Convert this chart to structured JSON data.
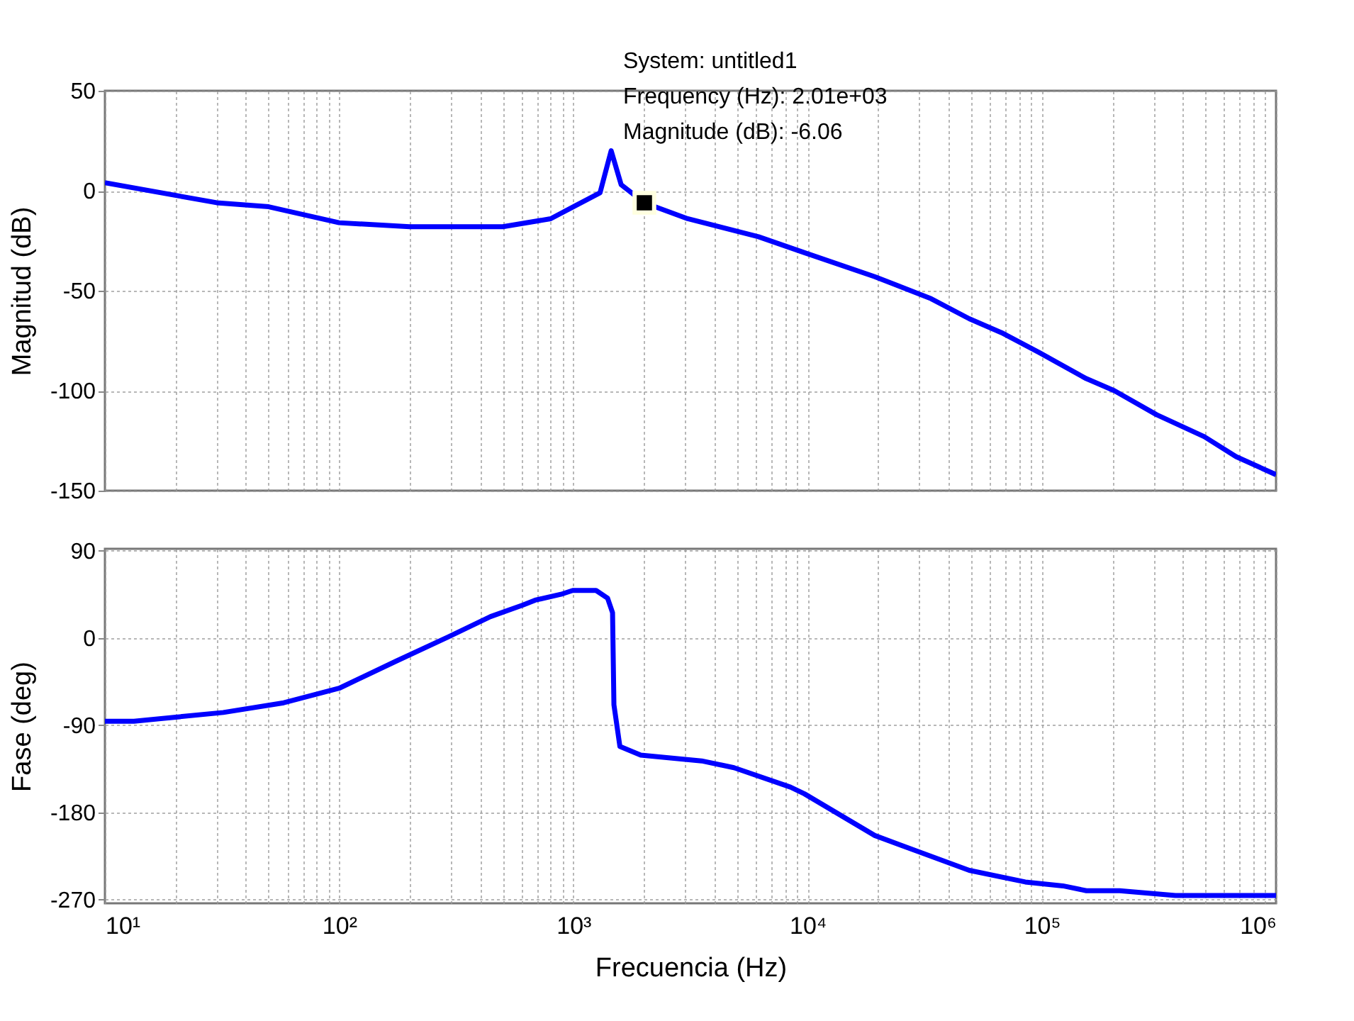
{
  "chart_data": [
    {
      "type": "line",
      "ylabel": "Magnitud (dB)",
      "log": "x",
      "grid": true,
      "tick_labels": "y",
      "color": "#0000ff",
      "x": [
        10,
        30,
        50,
        100,
        200,
        500,
        800,
        1000,
        1300,
        1450,
        1600,
        2010,
        3076,
        6170,
        9700,
        19360,
        33700,
        49000,
        67300,
        97700,
        155000,
        204000,
        309000,
        494000,
        675000,
        1000000
      ],
      "values": [
        4,
        -6,
        -8,
        -16,
        -18,
        -18,
        -14,
        -8,
        -1,
        20,
        3,
        -6,
        -14,
        -23,
        -31,
        -43,
        -54,
        -64,
        -71,
        -81,
        -94,
        -100,
        -112,
        -123,
        -133,
        -142
      ],
      "xlim": [
        10,
        1000000
      ],
      "xticks": [
        {
          "value": 10,
          "label": null
        },
        {
          "value": 20,
          "label": null
        },
        {
          "value": 30,
          "label": null
        },
        {
          "value": 40,
          "label": null
        },
        {
          "value": 50,
          "label": null
        },
        {
          "value": 60,
          "label": null
        },
        {
          "value": 70,
          "label": null
        },
        {
          "value": 80,
          "label": null
        },
        {
          "value": 90,
          "label": null
        },
        {
          "value": 100,
          "label": null
        },
        {
          "value": 200,
          "label": null
        },
        {
          "value": 300,
          "label": null
        },
        {
          "value": 400,
          "label": null
        },
        {
          "value": 500,
          "label": null
        },
        {
          "value": 600,
          "label": null
        },
        {
          "value": 700,
          "label": null
        },
        {
          "value": 800,
          "label": null
        },
        {
          "value": 900,
          "label": null
        },
        {
          "value": 1000,
          "label": null
        },
        {
          "value": 2000,
          "label": null
        },
        {
          "value": 3000,
          "label": null
        },
        {
          "value": 4000,
          "label": null
        },
        {
          "value": 5000,
          "label": null
        },
        {
          "value": 6000,
          "label": null
        },
        {
          "value": 7000,
          "label": null
        },
        {
          "value": 8000,
          "label": null
        },
        {
          "value": 9000,
          "label": null
        },
        {
          "value": 10000,
          "label": null
        },
        {
          "value": 20000,
          "label": null
        },
        {
          "value": 30000,
          "label": null
        },
        {
          "value": 40000,
          "label": null
        },
        {
          "value": 50000,
          "label": null
        },
        {
          "value": 60000,
          "label": null
        },
        {
          "value": 70000,
          "label": null
        },
        {
          "value": 80000,
          "label": null
        },
        {
          "value": 90000,
          "label": null
        },
        {
          "value": 100000,
          "label": null
        },
        {
          "value": 200000,
          "label": null
        },
        {
          "value": 300000,
          "label": null
        },
        {
          "value": 400000,
          "label": null
        },
        {
          "value": 500000,
          "label": null
        },
        {
          "value": 600000,
          "label": null
        },
        {
          "value": 700000,
          "label": null
        },
        {
          "value": 800000,
          "label": null
        },
        {
          "value": 900000,
          "label": null
        },
        {
          "value": 1000000,
          "label": null
        }
      ],
      "ylim": [
        -150,
        50
      ],
      "yticks": [
        -150,
        -100,
        -50,
        0,
        50
      ],
      "annotations": [
        {
          "text": "System: untitled1\nFrequency (Hz): 2.01e+03\nMagnitude (dB): -6.06",
          "x": 2010,
          "y": -6.06
        }
      ]
    },
    {
      "type": "line",
      "ylabel": "Fase (deg)",
      "xlabel": "Frecuencia  (Hz)",
      "log": "x",
      "grid": true,
      "color": "#0000ff",
      "x": [
        10,
        13.3,
        19.7,
        32,
        58,
        100,
        175,
        292,
        443,
        610,
        687,
        885,
        994,
        1250,
        1400,
        1470,
        1490,
        1580,
        1940,
        3530,
        4850,
        8450,
        9700,
        19360,
        30800,
        49000,
        85000,
        123000,
        155000,
        215000,
        372000,
        1000000
      ],
      "values": [
        -86,
        -86,
        -82,
        -77,
        -67,
        -52,
        -24,
        1,
        22,
        34,
        39,
        45,
        49,
        49,
        41,
        26,
        -69,
        -112,
        -121,
        -127,
        -134,
        -154,
        -161,
        -204,
        -222,
        -240,
        -252,
        -256,
        -261,
        -261,
        -266,
        -266
      ],
      "xlim": [
        10,
        1000000
      ],
      "xticks": [
        {
          "value": 10,
          "label": "10¹"
        },
        {
          "value": 20,
          "label": null
        },
        {
          "value": 30,
          "label": null
        },
        {
          "value": 40,
          "label": null
        },
        {
          "value": 50,
          "label": null
        },
        {
          "value": 60,
          "label": null
        },
        {
          "value": 70,
          "label": null
        },
        {
          "value": 80,
          "label": null
        },
        {
          "value": 90,
          "label": null
        },
        {
          "value": 100,
          "label": "10²"
        },
        {
          "value": 200,
          "label": null
        },
        {
          "value": 300,
          "label": null
        },
        {
          "value": 400,
          "label": null
        },
        {
          "value": 500,
          "label": null
        },
        {
          "value": 600,
          "label": null
        },
        {
          "value": 700,
          "label": null
        },
        {
          "value": 800,
          "label": null
        },
        {
          "value": 900,
          "label": null
        },
        {
          "value": 1000,
          "label": "10³"
        },
        {
          "value": 2000,
          "label": null
        },
        {
          "value": 3000,
          "label": null
        },
        {
          "value": 4000,
          "label": null
        },
        {
          "value": 5000,
          "label": null
        },
        {
          "value": 6000,
          "label": null
        },
        {
          "value": 7000,
          "label": null
        },
        {
          "value": 8000,
          "label": null
        },
        {
          "value": 9000,
          "label": null
        },
        {
          "value": 10000,
          "label": "10⁴"
        },
        {
          "value": 20000,
          "label": null
        },
        {
          "value": 30000,
          "label": null
        },
        {
          "value": 40000,
          "label": null
        },
        {
          "value": 50000,
          "label": null
        },
        {
          "value": 60000,
          "label": null
        },
        {
          "value": 70000,
          "label": null
        },
        {
          "value": 80000,
          "label": null
        },
        {
          "value": 90000,
          "label": null
        },
        {
          "value": 100000,
          "label": "10⁵"
        },
        {
          "value": 200000,
          "label": null
        },
        {
          "value": 300000,
          "label": null
        },
        {
          "value": 400000,
          "label": null
        },
        {
          "value": 500000,
          "label": null
        },
        {
          "value": 600000,
          "label": null
        },
        {
          "value": 700000,
          "label": null
        },
        {
          "value": 800000,
          "label": null
        },
        {
          "value": 900000,
          "label": null
        },
        {
          "value": 1000000,
          "label": "10⁶"
        }
      ],
      "ylim": [
        -274,
        92
      ],
      "yticks": [
        -270,
        -180,
        -90,
        0,
        90
      ]
    }
  ]
}
